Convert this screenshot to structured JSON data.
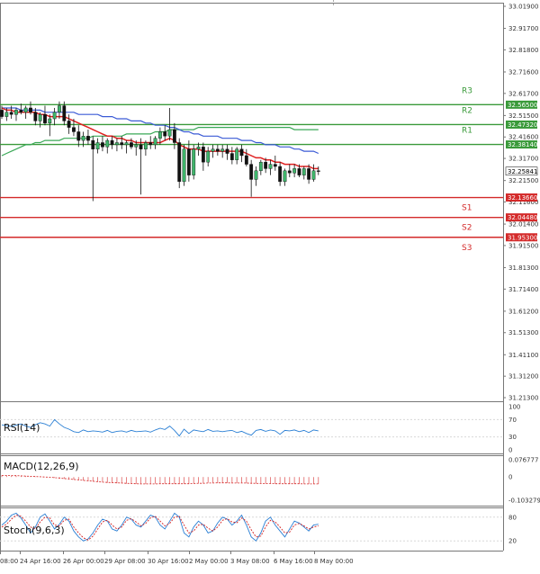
{
  "chart_data": [
    {
      "type": "candlestick",
      "panel": "price",
      "ylim": [
        31.213,
        33.019
      ],
      "y_ticks": [
        "33.01900",
        "32.91700",
        "32.81800",
        "32.71600",
        "32.61700",
        "32.51500",
        "32.41600",
        "32.31700",
        "32.21500",
        "32.11600",
        "32.01400",
        "31.91500",
        "31.81300",
        "31.71400",
        "31.61200",
        "31.51300",
        "31.41100",
        "31.31200",
        "31.21300"
      ],
      "x_ticks": [
        "08:00",
        "24 Apr 16:00",
        "26 Apr 00:00",
        "29 Apr 08:00",
        "30 Apr 16:00",
        "2 May 00:00",
        "3 May 08:00",
        "6 May 16:00",
        "8 May 00:00"
      ],
      "current_price": "32.25841",
      "candles": [
        [
          32.54,
          32.56,
          32.5,
          32.51
        ],
        [
          32.51,
          32.55,
          32.49,
          32.53
        ],
        [
          32.53,
          32.56,
          32.5,
          32.52
        ],
        [
          32.52,
          32.55,
          32.49,
          32.54
        ],
        [
          32.54,
          32.57,
          32.52,
          32.53
        ],
        [
          32.53,
          32.56,
          32.5,
          32.55
        ],
        [
          32.55,
          32.58,
          32.52,
          32.53
        ],
        [
          32.53,
          32.55,
          32.47,
          32.49
        ],
        [
          32.49,
          32.53,
          32.46,
          32.52
        ],
        [
          32.52,
          32.56,
          32.47,
          32.48
        ],
        [
          32.48,
          32.52,
          32.42,
          32.5
        ],
        [
          32.5,
          32.55,
          32.47,
          32.53
        ],
        [
          32.53,
          32.58,
          32.5,
          32.56
        ],
        [
          32.56,
          32.58,
          32.47,
          32.49
        ],
        [
          32.49,
          32.52,
          32.43,
          32.46
        ],
        [
          32.46,
          32.5,
          32.42,
          32.44
        ],
        [
          32.44,
          32.47,
          32.37,
          32.4
        ],
        [
          32.4,
          32.44,
          32.37,
          32.42
        ],
        [
          32.42,
          32.45,
          32.38,
          32.4
        ],
        [
          32.4,
          32.42,
          32.12,
          32.36
        ],
        [
          32.36,
          32.41,
          32.34,
          32.39
        ],
        [
          32.39,
          32.42,
          32.35,
          32.37
        ],
        [
          32.37,
          32.41,
          32.34,
          32.4
        ],
        [
          32.4,
          32.42,
          32.36,
          32.38
        ],
        [
          32.38,
          32.41,
          32.35,
          32.39
        ],
        [
          32.39,
          32.42,
          32.36,
          32.38
        ],
        [
          32.38,
          32.4,
          32.34,
          32.39
        ],
        [
          32.39,
          32.41,
          32.36,
          32.37
        ],
        [
          32.37,
          32.4,
          32.33,
          32.38
        ],
        [
          32.38,
          32.41,
          32.15,
          32.36
        ],
        [
          32.36,
          32.4,
          32.33,
          32.39
        ],
        [
          32.39,
          32.42,
          32.36,
          32.38
        ],
        [
          32.38,
          32.42,
          32.36,
          32.41
        ],
        [
          32.41,
          32.46,
          32.38,
          32.44
        ],
        [
          32.44,
          32.47,
          32.4,
          32.42
        ],
        [
          32.42,
          32.55,
          32.4,
          32.45
        ],
        [
          32.45,
          32.48,
          32.36,
          32.39
        ],
        [
          32.39,
          32.41,
          32.18,
          32.21
        ],
        [
          32.21,
          32.38,
          32.19,
          32.36
        ],
        [
          32.36,
          32.4,
          32.21,
          32.24
        ],
        [
          32.24,
          32.38,
          32.22,
          32.36
        ],
        [
          32.36,
          32.39,
          32.33,
          32.37
        ],
        [
          32.37,
          32.39,
          32.26,
          32.3
        ],
        [
          32.3,
          32.37,
          32.28,
          32.35
        ],
        [
          32.35,
          32.38,
          32.32,
          32.36
        ],
        [
          32.36,
          32.38,
          32.33,
          32.35
        ],
        [
          32.35,
          32.38,
          32.32,
          32.36
        ],
        [
          32.36,
          32.38,
          32.31,
          32.34
        ],
        [
          32.34,
          32.37,
          32.29,
          32.31
        ],
        [
          32.31,
          32.37,
          32.29,
          32.36
        ],
        [
          32.36,
          32.38,
          32.3,
          32.33
        ],
        [
          32.33,
          32.36,
          32.28,
          32.29
        ],
        [
          32.29,
          32.31,
          32.14,
          32.22
        ],
        [
          32.22,
          32.28,
          32.19,
          32.26
        ],
        [
          32.26,
          32.31,
          32.24,
          32.3
        ],
        [
          32.3,
          32.32,
          32.25,
          32.27
        ],
        [
          32.27,
          32.31,
          32.24,
          32.29
        ],
        [
          32.29,
          32.33,
          32.26,
          32.28
        ],
        [
          32.28,
          32.3,
          32.19,
          32.21
        ],
        [
          32.21,
          32.27,
          32.19,
          32.26
        ],
        [
          32.26,
          32.29,
          32.23,
          32.25
        ],
        [
          32.25,
          32.29,
          32.23,
          32.27
        ],
        [
          32.27,
          32.29,
          32.23,
          32.24
        ],
        [
          32.24,
          32.28,
          32.22,
          32.27
        ],
        [
          32.27,
          32.29,
          32.2,
          32.22
        ],
        [
          32.22,
          32.29,
          32.21,
          32.26
        ],
        [
          32.26,
          32.28,
          32.24,
          32.258
        ]
      ],
      "ma_red": [
        32.55,
        32.54,
        32.54,
        32.53,
        32.53,
        32.53,
        32.53,
        32.53,
        32.52,
        32.52,
        32.51,
        32.51,
        32.51,
        32.51,
        32.5,
        32.49,
        32.48,
        32.47,
        32.46,
        32.45,
        32.44,
        32.43,
        32.42,
        32.42,
        32.41,
        32.41,
        32.4,
        32.4,
        32.39,
        32.39,
        32.39,
        32.39,
        32.39,
        32.39,
        32.4,
        32.41,
        32.4,
        32.38,
        32.37,
        32.36,
        32.36,
        32.36,
        32.35,
        32.35,
        32.35,
        32.35,
        32.35,
        32.35,
        32.35,
        32.35,
        32.35,
        32.34,
        32.33,
        32.32,
        32.32,
        32.31,
        32.31,
        32.3,
        32.3,
        32.29,
        32.29,
        32.29,
        32.28,
        32.28,
        32.28,
        32.27,
        32.27
      ],
      "ma_blue": [
        32.55,
        32.55,
        32.55,
        32.55,
        32.54,
        32.54,
        32.54,
        32.54,
        32.54,
        32.53,
        32.53,
        32.53,
        32.53,
        32.53,
        32.53,
        32.53,
        32.52,
        32.52,
        32.52,
        32.52,
        32.52,
        32.51,
        32.51,
        32.51,
        32.5,
        32.5,
        32.5,
        32.49,
        32.49,
        32.49,
        32.48,
        32.48,
        32.47,
        32.47,
        32.47,
        32.46,
        32.46,
        32.45,
        32.44,
        32.44,
        32.43,
        32.43,
        32.42,
        32.42,
        32.42,
        32.42,
        32.41,
        32.41,
        32.41,
        32.41,
        32.4,
        32.4,
        32.4,
        32.39,
        32.39,
        32.38,
        32.38,
        32.38,
        32.37,
        32.37,
        32.37,
        32.36,
        32.36,
        32.35,
        32.35,
        32.35,
        32.34
      ],
      "ma_green": [
        32.33,
        32.34,
        32.35,
        32.36,
        32.37,
        32.38,
        32.38,
        32.39,
        32.39,
        32.4,
        32.4,
        32.4,
        32.4,
        32.41,
        32.41,
        32.41,
        32.41,
        32.41,
        32.41,
        32.42,
        32.42,
        32.42,
        32.42,
        32.42,
        32.42,
        32.42,
        32.43,
        32.43,
        32.43,
        32.43,
        32.43,
        32.43,
        32.44,
        32.44,
        32.44,
        32.45,
        32.45,
        32.45,
        32.45,
        32.45,
        32.45,
        32.46,
        32.46,
        32.46,
        32.46,
        32.46,
        32.46,
        32.46,
        32.46,
        32.46,
        32.46,
        32.46,
        32.46,
        32.46,
        32.46,
        32.46,
        32.46,
        32.46,
        32.46,
        32.46,
        32.46,
        32.45,
        32.45,
        32.45,
        32.45,
        32.45,
        32.45
      ],
      "levels": [
        {
          "label": "R3",
          "value": 32.565,
          "value_text": "32.56500",
          "color": "#3a9a3a"
        },
        {
          "label": "R2",
          "value": 32.4732,
          "value_text": "32.47320",
          "color": "#3a9a3a"
        },
        {
          "label": "R1",
          "value": 32.3814,
          "value_text": "32.38140",
          "color": "#3a9a3a"
        },
        {
          "label": "S1",
          "value": 32.1366,
          "value_text": "32.13660",
          "color": "#d42a2a"
        },
        {
          "label": "S2",
          "value": 32.0448,
          "value_text": "32.04480",
          "color": "#d42a2a"
        },
        {
          "label": "S3",
          "value": 31.953,
          "value_text": "31.95300",
          "color": "#d42a2a"
        }
      ]
    },
    {
      "type": "line",
      "panel": "rsi",
      "title": "RSI(14)",
      "ylim": [
        0,
        100
      ],
      "y_ticks": [
        "100",
        "70",
        "30",
        "0"
      ],
      "values": [
        58,
        56,
        54,
        57,
        60,
        55,
        52,
        58,
        63,
        60,
        55,
        70,
        60,
        52,
        48,
        42,
        40,
        46,
        42,
        44,
        43,
        41,
        45,
        40,
        43,
        44,
        41,
        45,
        42,
        43,
        44,
        41,
        46,
        50,
        47,
        55,
        45,
        32,
        48,
        38,
        46,
        44,
        42,
        47,
        43,
        44,
        42,
        44,
        45,
        40,
        43,
        38,
        34,
        45,
        47,
        43,
        46,
        44,
        36,
        45,
        44,
        46,
        42,
        45,
        40,
        46,
        44
      ]
    },
    {
      "type": "bar",
      "panel": "macd",
      "title": "MACD(12,26,9)",
      "ylim": [
        -0.103279,
        0.076777
      ],
      "y_ticks": [
        "0.076777",
        "0",
        "-0.103279"
      ],
      "values": [
        0.008,
        0.007,
        0.006,
        0.006,
        0.005,
        0.004,
        0.003,
        0.002,
        0.001,
        0.0,
        -0.002,
        -0.004,
        -0.006,
        -0.008,
        -0.01,
        -0.012,
        -0.014,
        -0.016,
        -0.018,
        -0.02,
        -0.022,
        -0.024,
        -0.026,
        -0.027,
        -0.028,
        -0.029,
        -0.03,
        -0.031,
        -0.031,
        -0.032,
        -0.032,
        -0.031,
        -0.03,
        -0.03,
        -0.029,
        -0.029,
        -0.03,
        -0.031,
        -0.03,
        -0.029,
        -0.028,
        -0.027,
        -0.027,
        -0.026,
        -0.026,
        -0.026,
        -0.026,
        -0.027,
        -0.027,
        -0.027,
        -0.027,
        -0.028,
        -0.029,
        -0.029,
        -0.029,
        -0.029,
        -0.03,
        -0.03,
        -0.03,
        -0.03,
        -0.03,
        -0.03,
        -0.031,
        -0.031,
        -0.031,
        -0.031,
        -0.031
      ],
      "signal": [
        0.007,
        0.007,
        0.006,
        0.006,
        0.005,
        0.004,
        0.003,
        0.002,
        0.001,
        0.0,
        -0.001,
        -0.003,
        -0.005,
        -0.007,
        -0.009,
        -0.011,
        -0.013,
        -0.015,
        -0.017,
        -0.019,
        -0.021,
        -0.023,
        -0.024,
        -0.025,
        -0.026,
        -0.027,
        -0.028,
        -0.029,
        -0.03,
        -0.031,
        -0.031,
        -0.031,
        -0.031,
        -0.03,
        -0.03,
        -0.03,
        -0.03,
        -0.03,
        -0.03,
        -0.03,
        -0.029,
        -0.028,
        -0.028,
        -0.027,
        -0.027,
        -0.026,
        -0.026,
        -0.026,
        -0.027,
        -0.027,
        -0.027,
        -0.027,
        -0.028,
        -0.028,
        -0.029,
        -0.029,
        -0.029,
        -0.03,
        -0.03,
        -0.03,
        -0.03,
        -0.03,
        -0.03,
        -0.031,
        -0.031,
        -0.031,
        -0.031
      ]
    },
    {
      "type": "line",
      "panel": "stoch",
      "title": "Stoch(9,6,3)",
      "ylim": [
        0,
        100
      ],
      "y_ticks": [
        "80",
        "20"
      ],
      "k": [
        60,
        70,
        85,
        90,
        78,
        60,
        40,
        55,
        80,
        88,
        70,
        50,
        62,
        80,
        70,
        45,
        30,
        20,
        25,
        40,
        60,
        75,
        70,
        50,
        45,
        60,
        80,
        75,
        60,
        55,
        70,
        85,
        80,
        60,
        50,
        70,
        90,
        80,
        40,
        30,
        55,
        70,
        60,
        40,
        45,
        65,
        80,
        75,
        60,
        70,
        85,
        60,
        30,
        20,
        40,
        70,
        80,
        60,
        45,
        30,
        50,
        70,
        65,
        55,
        45,
        60,
        62
      ],
      "d": [
        55,
        62,
        75,
        85,
        82,
        70,
        55,
        50,
        68,
        80,
        78,
        60,
        58,
        72,
        75,
        55,
        40,
        28,
        22,
        32,
        50,
        68,
        72,
        60,
        50,
        55,
        72,
        76,
        68,
        58,
        64,
        78,
        82,
        70,
        58,
        64,
        80,
        82,
        60,
        40,
        45,
        60,
        62,
        52,
        45,
        55,
        72,
        76,
        68,
        66,
        78,
        70,
        48,
        30,
        32,
        55,
        72,
        68,
        55,
        40,
        42,
        60,
        64,
        58,
        50,
        55,
        58
      ]
    }
  ]
}
